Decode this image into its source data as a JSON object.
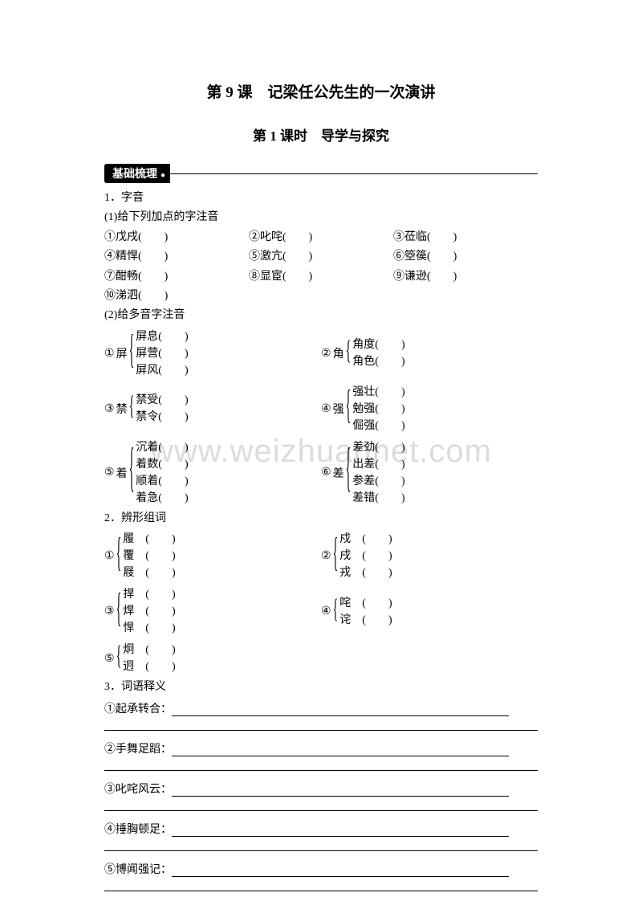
{
  "title_main": "第 9 课　记梁任公先生的一次演讲",
  "title_sub": "第 1 课时　导学与探究",
  "section_badge": "基础梳理",
  "watermark": "www.weizhuannet.com",
  "q1": {
    "heading": "1．字音",
    "sub1": "(1)给下列加点的字注音",
    "items1": [
      [
        "①戊戌(　　)",
        "②叱咤(　　)",
        "③莅临(　　)"
      ],
      [
        "④精悍(　　)",
        "⑤激亢(　　)",
        "⑥箜篌(　　)"
      ],
      [
        "⑦酣畅(　　)",
        "⑧显宦(　　)",
        "⑨谦逊(　　)"
      ],
      [
        "⑩涕泗(　　)",
        "",
        ""
      ]
    ],
    "sub2": "(2)给多音字注音",
    "groups": [
      {
        "num": "①",
        "head": "屏",
        "items": [
          "屏息(　　)",
          "屏营(　　)",
          "屏风(　　)"
        ],
        "size": 3
      },
      {
        "num": "②",
        "head": "角",
        "items": [
          "角度(　　)",
          "角色(　　)"
        ],
        "size": 2
      },
      {
        "num": "③",
        "head": "禁",
        "items": [
          "禁受(　　)",
          "禁令(　　)"
        ],
        "size": 2
      },
      {
        "num": "④",
        "head": "强",
        "items": [
          "强壮(　　)",
          "勉强(　　)",
          "倔强(　　)"
        ],
        "size": 3
      },
      {
        "num": "⑤",
        "head": "着",
        "items": [
          "沉着(　　)",
          "着数(　　)",
          "顺着(　　)",
          "着急(　　)"
        ],
        "size": 4
      },
      {
        "num": "⑥",
        "head": "差",
        "items": [
          "差劲(　　)",
          "出差(　　)",
          "参差(　　)",
          "差错(　　)"
        ],
        "size": 4
      }
    ]
  },
  "q2": {
    "heading": "2．辨形组词",
    "groups": [
      {
        "num": "①",
        "items": [
          "履　(　　)",
          "覆　(　　)",
          "屐　(　　)"
        ],
        "size": 3
      },
      {
        "num": "②",
        "items": [
          "戍　(　　)",
          "戌　(　　)",
          "戎　(　　)"
        ],
        "size": 3
      },
      {
        "num": "③",
        "items": [
          "捍　(　　)",
          "焊　(　　)",
          "悍　(　　)"
        ],
        "size": 3
      },
      {
        "num": "④",
        "items": [
          "咤　(　　)",
          "诧　(　　)"
        ],
        "size": 2
      },
      {
        "num": "⑤",
        "items": [
          "炯　(　　)",
          "迥　(　　)"
        ],
        "size": 2
      }
    ]
  },
  "q3": {
    "heading": "3．词语释义",
    "items": [
      "①起承转合：",
      "②手舞足蹈：",
      "③叱咤风云：",
      "④捶胸顿足：",
      "⑤博闻强记："
    ]
  }
}
